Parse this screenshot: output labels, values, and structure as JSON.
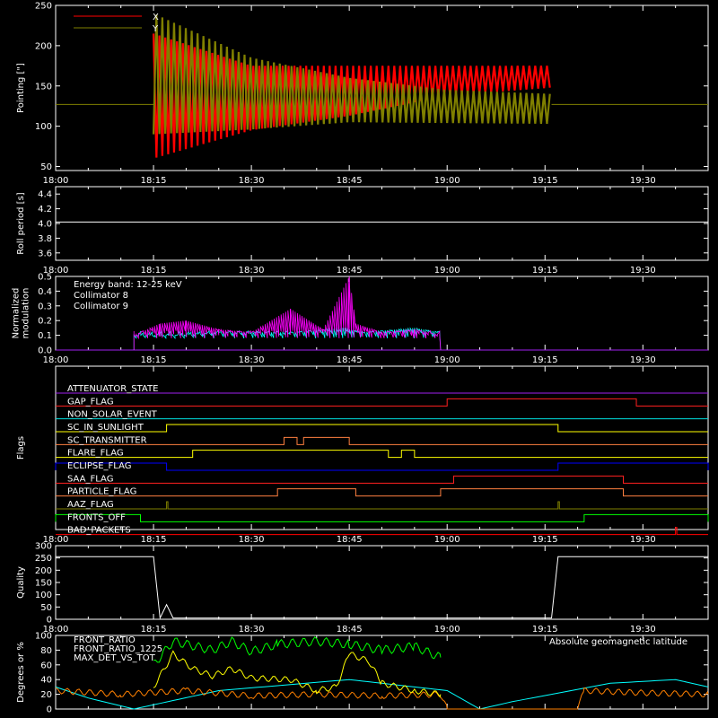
{
  "x_axis": {
    "start": "18:00",
    "end": "19:40",
    "ticks": [
      "18:00",
      "18:15",
      "18:30",
      "18:45",
      "19:00",
      "19:15",
      "19:30"
    ]
  },
  "colors": {
    "background": "#000000",
    "axes": "#ffffff"
  },
  "chart_data": [
    {
      "id": "pointing",
      "type": "line",
      "ylabel": "Pointing [\"]",
      "ylim": [
        45,
        250
      ],
      "yticks": [
        50,
        100,
        150,
        200,
        250
      ],
      "legend": {
        "position": "top-left",
        "entries": [
          {
            "name": "X",
            "color": "#ff0000"
          },
          {
            "name": "Y",
            "color": "#808000"
          }
        ]
      },
      "baseline": 127,
      "envelope_series": [
        {
          "name": "X",
          "color": "#ff0000",
          "points": [
            {
              "t": "18:15",
              "lo": 60,
              "hi": 215
            },
            {
              "t": "18:30",
              "lo": 95,
              "hi": 175
            },
            {
              "t": "18:45",
              "lo": 113,
              "hi": 175
            },
            {
              "t": "19:00",
              "lo": 138,
              "hi": 175
            },
            {
              "t": "19:16",
              "lo": 148,
              "hi": 175
            }
          ]
        },
        {
          "name": "Y",
          "color": "#808000",
          "points": [
            {
              "t": "18:15",
              "lo": 90,
              "hi": 240
            },
            {
              "t": "18:30",
              "lo": 96,
              "hi": 185
            },
            {
              "t": "18:45",
              "lo": 105,
              "hi": 160
            },
            {
              "t": "19:00",
              "lo": 104,
              "hi": 145
            },
            {
              "t": "19:16",
              "lo": 103,
              "hi": 140
            }
          ]
        }
      ]
    },
    {
      "id": "roll",
      "type": "line",
      "ylabel": "Roll period [s]",
      "ylim": [
        3.5,
        4.5
      ],
      "yticks": [
        3.6,
        3.8,
        4.0,
        4.2,
        4.4
      ],
      "series": [
        {
          "color": "#ffffff",
          "points": [
            [
              "18:00",
              4.02
            ],
            [
              "19:40",
              4.02
            ]
          ]
        }
      ]
    },
    {
      "id": "modulation",
      "type": "bar",
      "ylabel": [
        "Normalized",
        "modulation"
      ],
      "ylim": [
        0,
        0.5
      ],
      "yticks": [
        0.0,
        0.1,
        0.2,
        0.3,
        0.4,
        0.5
      ],
      "annotation": "Energy band: 12-25 keV",
      "series": [
        {
          "name": "Collimator 8",
          "color": "#00ffff",
          "points": [
            [
              "18:12",
              0.1
            ],
            [
              "18:19",
              0.1
            ],
            [
              "18:25",
              0.12
            ],
            [
              "18:36",
              0.12
            ],
            [
              "18:44",
              0.15
            ],
            [
              "18:47",
              0.12
            ],
            [
              "18:55",
              0.15
            ],
            [
              "18:59",
              0.12
            ]
          ]
        },
        {
          "name": "Collimator 9",
          "color": "#ff00ff",
          "points": [
            [
              "18:12",
              0.1
            ],
            [
              "18:16",
              0.18
            ],
            [
              "18:20",
              0.2
            ],
            [
              "18:25",
              0.14
            ],
            [
              "18:30",
              0.12
            ],
            [
              "18:36",
              0.28
            ],
            [
              "18:41",
              0.14
            ],
            [
              "18:45",
              0.5
            ],
            [
              "18:46",
              0.18
            ],
            [
              "18:50",
              0.12
            ],
            [
              "18:55",
              0.14
            ],
            [
              "18:59",
              0.1
            ]
          ]
        }
      ]
    },
    {
      "id": "flags",
      "type": "line",
      "ylabel": "Flags",
      "flags": [
        {
          "name": "ATTENUATOR_STATE",
          "color": "#a020f0",
          "base": 0,
          "high": []
        },
        {
          "name": "GAP_FLAG",
          "color": "#ff2020",
          "base": 0,
          "high": [
            [
              "19:00",
              "19:29"
            ]
          ]
        },
        {
          "name": "NON_SOLAR_EVENT",
          "color": "#00e0e0",
          "base": 0,
          "high": []
        },
        {
          "name": "SC_IN_SUNLIGHT",
          "color": "#ffff00",
          "base": 0,
          "high": [
            [
              "18:17",
              "19:17"
            ]
          ]
        },
        {
          "name": "SC_TRANSMITTER",
          "color": "#ff8040",
          "base": 0,
          "high": [
            [
              "18:35",
              "18:37"
            ],
            [
              "18:38",
              "18:45"
            ]
          ]
        },
        {
          "name": "FLARE_FLAG",
          "color": "#ffff00",
          "base": 0,
          "high": [
            [
              "18:21",
              "18:51"
            ],
            [
              "18:53",
              "18:55"
            ]
          ]
        },
        {
          "name": "ECLIPSE_FLAG",
          "color": "#0000ff",
          "base": 1,
          "high": [
            [
              "18:00",
              "18:17"
            ],
            [
              "19:17",
              "19:40"
            ]
          ]
        },
        {
          "name": "SAA_FLAG",
          "color": "#ff2020",
          "base": 0,
          "high": [
            [
              "19:01",
              "19:27"
            ]
          ]
        },
        {
          "name": "PARTICLE_FLAG",
          "color": "#ff8040",
          "base": 0,
          "high": [
            [
              "18:34",
              "18:46"
            ],
            [
              "18:59",
              "19:27"
            ]
          ]
        },
        {
          "name": "AAZ_FLAG",
          "color": "#808000",
          "base": 0,
          "high": [
            [
              "18:17",
              "18:17"
            ],
            [
              "19:17",
              "19:17"
            ]
          ]
        },
        {
          "name": "FRONTS_OFF",
          "color": "#00ff00",
          "base": 1,
          "high": [
            [
              "18:00",
              "18:13"
            ],
            [
              "19:21",
              "19:40"
            ]
          ]
        },
        {
          "name": "BAD_PACKETS",
          "color": "#ff0000",
          "base": 0,
          "high": [
            [
              "19:35",
              "19:35"
            ]
          ]
        }
      ]
    },
    {
      "id": "quality",
      "type": "line",
      "ylabel": "Quality",
      "ylim": [
        0,
        300
      ],
      "yticks": [
        0,
        50,
        100,
        150,
        200,
        250,
        300
      ],
      "series": [
        {
          "color": "#ffffff",
          "points": [
            [
              "18:00",
              255
            ],
            [
              "18:15",
              255
            ],
            [
              "18:16",
              5
            ],
            [
              "18:17",
              60
            ],
            [
              "18:18",
              5
            ],
            [
              "19:16",
              5
            ],
            [
              "19:17",
              255
            ],
            [
              "19:40",
              255
            ]
          ]
        }
      ]
    },
    {
      "id": "geomag",
      "type": "line",
      "ylabel": "Degrees or %",
      "ylim": [
        0,
        100
      ],
      "yticks": [
        0,
        20,
        40,
        60,
        80,
        100
      ],
      "annotation": "Absolute geomagnetic latitude",
      "series": [
        {
          "name": "FRONT_RATIO",
          "color": "#ffff00",
          "points": [
            [
              "18:15",
              30
            ],
            [
              "18:18",
              75
            ],
            [
              "18:21",
              55
            ],
            [
              "18:24",
              45
            ],
            [
              "18:27",
              55
            ],
            [
              "18:30",
              42
            ],
            [
              "18:36",
              40
            ],
            [
              "18:40",
              25
            ],
            [
              "18:43",
              30
            ],
            [
              "18:45",
              75
            ],
            [
              "18:48",
              65
            ],
            [
              "18:50",
              35
            ],
            [
              "18:55",
              25
            ],
            [
              "18:59",
              20
            ]
          ]
        },
        {
          "name": "FRONT_RATIO_1225",
          "color": "#00ff00",
          "points": [
            [
              "18:15",
              60
            ],
            [
              "18:18",
              92
            ],
            [
              "18:24",
              80
            ],
            [
              "18:27",
              92
            ],
            [
              "18:30",
              78
            ],
            [
              "18:34",
              88
            ],
            [
              "18:40",
              92
            ],
            [
              "18:45",
              88
            ],
            [
              "18:50",
              80
            ],
            [
              "18:55",
              85
            ],
            [
              "18:59",
              70
            ]
          ]
        },
        {
          "name": "MAX_DET_VS_TOT",
          "color": "#ff8000",
          "points": [
            [
              "18:00",
              25
            ],
            [
              "18:10",
              20
            ],
            [
              "18:20",
              25
            ],
            [
              "18:30",
              18
            ],
            [
              "18:40",
              20
            ],
            [
              "18:50",
              18
            ],
            [
              "18:59",
              20
            ],
            [
              "19:00",
              0
            ],
            [
              "19:20",
              0
            ],
            [
              "19:21",
              25
            ],
            [
              "19:30",
              22
            ],
            [
              "19:40",
              20
            ]
          ]
        },
        {
          "name": "Absolute geomagnetic latitude",
          "color": "#00ffff",
          "points": [
            [
              "18:00",
              30
            ],
            [
              "18:05",
              15
            ],
            [
              "18:12",
              0
            ],
            [
              "18:25",
              25
            ],
            [
              "18:45",
              40
            ],
            [
              "19:00",
              25
            ],
            [
              "19:05",
              0
            ],
            [
              "19:10",
              10
            ],
            [
              "19:25",
              35
            ],
            [
              "19:35",
              40
            ],
            [
              "19:40",
              30
            ]
          ]
        }
      ]
    }
  ]
}
